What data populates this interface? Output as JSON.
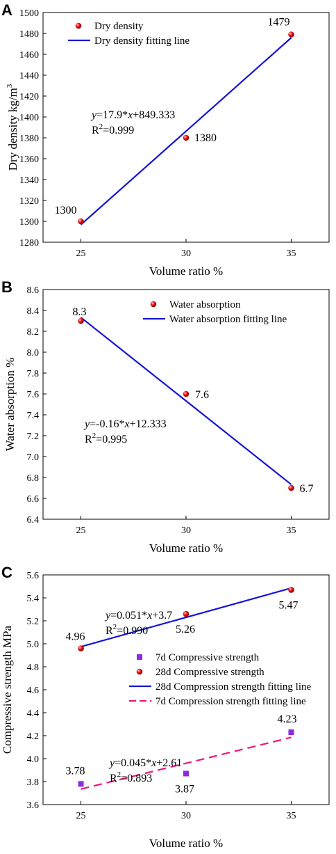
{
  "chart_data": [
    {
      "panel": "A",
      "type": "scatter",
      "xlabel": "Volume ratio %",
      "ylabel": "Dry density kg/m",
      "ylabel_sup": "3",
      "xlim": [
        23.2,
        36.8
      ],
      "ylim": [
        1280,
        1500
      ],
      "xticks": [
        25,
        30,
        35
      ],
      "yticks": [
        1280,
        1300,
        1320,
        1340,
        1360,
        1380,
        1400,
        1420,
        1440,
        1460,
        1480,
        1500
      ],
      "grid": false,
      "legend_position": "top-left",
      "series": [
        {
          "name": "Dry density",
          "kind": "points",
          "marker": "red-sphere",
          "color": "#e01010",
          "points": [
            {
              "x": 25,
              "y": 1300,
              "label": "1300"
            },
            {
              "x": 30,
              "y": 1380,
              "label": "1380"
            },
            {
              "x": 35,
              "y": 1479,
              "label": "1479"
            }
          ]
        },
        {
          "name": "Dry density fitting line",
          "kind": "line",
          "dash": "solid",
          "color": "#1414d8",
          "slope": 17.9,
          "intercept": 849.333,
          "x": [
            25,
            35
          ]
        }
      ],
      "annotation": {
        "eq_y": "y",
        "eq_rest": "=17.9*",
        "eq_x": "x",
        "eq_tail": "+849.333",
        "r2_pre": "R",
        "r2_sup": "2",
        "r2_tail": "=0.999"
      }
    },
    {
      "panel": "B",
      "type": "scatter",
      "xlabel": "Volume ratio %",
      "ylabel": "Water absorption %",
      "xlim": [
        23.2,
        36.8
      ],
      "ylim": [
        6.4,
        8.6
      ],
      "xticks": [
        25,
        30,
        35
      ],
      "yticks": [
        6.4,
        6.6,
        6.8,
        7.0,
        7.2,
        7.4,
        7.6,
        7.8,
        8.0,
        8.2,
        8.4,
        8.6
      ],
      "ytick_labels": [
        "6.4",
        "6.6",
        "6.8",
        "7.0",
        "7.2",
        "7.4",
        "7.6",
        "7.8",
        "8.0",
        "8.2",
        "8.4",
        "8.6"
      ],
      "grid": false,
      "legend_position": "top-right",
      "series": [
        {
          "name": "Water absorption",
          "kind": "points",
          "marker": "red-sphere",
          "color": "#e01010",
          "points": [
            {
              "x": 25,
              "y": 8.3,
              "label": "8.3"
            },
            {
              "x": 30,
              "y": 7.6,
              "label": "7.6"
            },
            {
              "x": 35,
              "y": 6.7,
              "label": "6.7"
            }
          ]
        },
        {
          "name": "Water absorption fitting line",
          "kind": "line",
          "dash": "solid",
          "color": "#1414d8",
          "slope": -0.16,
          "intercept": 12.333,
          "x": [
            25,
            35
          ]
        }
      ],
      "annotation": {
        "eq_y": "y",
        "eq_rest": "=-0.16*",
        "eq_x": "x",
        "eq_tail": "+12.333",
        "r2_pre": "R",
        "r2_sup": "2",
        "r2_tail": "=0.995"
      }
    },
    {
      "panel": "C",
      "type": "scatter",
      "xlabel": "Volume ratio %",
      "ylabel": "Compressive strength MPa",
      "xlim": [
        23.2,
        36.8
      ],
      "ylim": [
        3.6,
        5.6
      ],
      "xticks": [
        25,
        30,
        35
      ],
      "yticks": [
        3.6,
        3.8,
        4.0,
        4.2,
        4.4,
        4.6,
        4.8,
        5.0,
        5.2,
        5.4,
        5.6
      ],
      "ytick_labels": [
        "3.6",
        "3.8",
        "4.0",
        "4.2",
        "4.4",
        "4.6",
        "4.8",
        "5.0",
        "5.2",
        "5.4",
        "5.6"
      ],
      "grid": false,
      "legend_position": "center-right",
      "series": [
        {
          "name": "7d Compressive strength",
          "kind": "points",
          "marker": "purple-square",
          "color": "#8a2be2",
          "points": [
            {
              "x": 25,
              "y": 3.78,
              "label": "3.78"
            },
            {
              "x": 30,
              "y": 3.87,
              "label": "3.87"
            },
            {
              "x": 35,
              "y": 4.23,
              "label": "4.23"
            }
          ]
        },
        {
          "name": "28d Compressive strength",
          "kind": "points",
          "marker": "red-sphere",
          "color": "#e01010",
          "points": [
            {
              "x": 25,
              "y": 4.96,
              "label": "4.96"
            },
            {
              "x": 30,
              "y": 5.26,
              "label": "5.26"
            },
            {
              "x": 35,
              "y": 5.47,
              "label": "5.47"
            }
          ]
        },
        {
          "name": "28d Compression strength fitting line",
          "kind": "line",
          "dash": "solid",
          "color": "#1414d8",
          "slope": 0.051,
          "intercept": 3.7,
          "x": [
            25,
            35
          ]
        },
        {
          "name": "7d Compression strength fitting line",
          "kind": "line",
          "dash": "dashed",
          "color": "#f0147a",
          "slope": 0.045,
          "intercept": 2.61,
          "x": [
            25,
            35
          ]
        }
      ],
      "annotations": [
        {
          "eq_y": "y",
          "eq_rest": "=0.051*",
          "eq_x": "x",
          "eq_tail": "+3.7",
          "r2_pre": "R",
          "r2_sup": "2",
          "r2_tail": "=0.990"
        },
        {
          "eq_y": "y",
          "eq_rest": "=0.045*",
          "eq_x": "x",
          "eq_tail": "+2.61",
          "r2_pre": "R",
          "r2_sup": "2",
          "r2_tail": "=0.893"
        }
      ]
    }
  ]
}
